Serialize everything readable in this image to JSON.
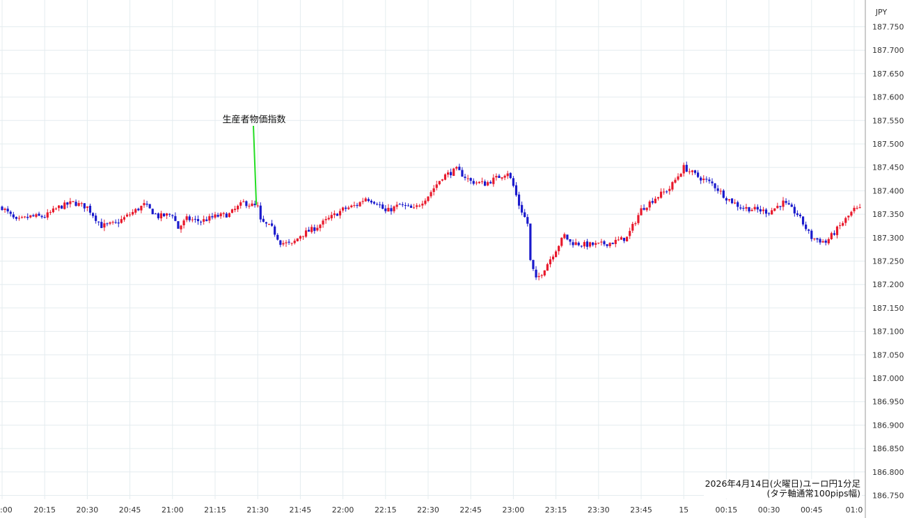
{
  "currency_label": "JPY",
  "caption": {
    "line1": "2026年4月14日(火曜日)ユーロ円1分足",
    "line2": "(タテ軸通常100pips幅)"
  },
  "colors": {
    "up": "#e8192c",
    "down": "#1a1acc",
    "grid": "#e4ecef",
    "annotation_line": "#22dd22"
  },
  "chart_data": {
    "type": "candlestick",
    "instrument": "EUR/JPY",
    "timeframe": "1m",
    "ylim": [
      186.75,
      187.77
    ],
    "y_ticks": [
      "187.750",
      "187.700",
      "187.650",
      "187.600",
      "187.550",
      "187.500",
      "187.450",
      "187.400",
      "187.350",
      "187.300",
      "187.250",
      "187.200",
      "187.150",
      "187.100",
      "187.050",
      "187.000",
      "186.950",
      "186.900",
      "186.850",
      "186.800",
      "186.750"
    ],
    "x_ticks": [
      ":00",
      "20:15",
      "20:30",
      "20:45",
      "21:00",
      "21:15",
      "21:30",
      "21:45",
      "22:00",
      "22:15",
      "22:30",
      "22:45",
      "23:00",
      "23:15",
      "23:30",
      "23:45",
      "15",
      "00:15",
      "00:30",
      "00:45",
      "01:0"
    ],
    "x_range_minutes": [
      "20:00",
      "01:02"
    ],
    "annotation": {
      "text": "生産者物価指数",
      "time": "21:30",
      "price": 187.37
    },
    "anchors": [
      [
        "20:00",
        187.365
      ],
      [
        "20:05",
        187.335
      ],
      [
        "20:10",
        187.345
      ],
      [
        "20:15",
        187.345
      ],
      [
        "20:20",
        187.365
      ],
      [
        "20:25",
        187.375
      ],
      [
        "20:30",
        187.365
      ],
      [
        "20:35",
        187.325
      ],
      [
        "20:40",
        187.33
      ],
      [
        "20:45",
        187.35
      ],
      [
        "20:50",
        187.37
      ],
      [
        "20:55",
        187.345
      ],
      [
        "21:00",
        187.35
      ],
      [
        "21:02",
        187.32
      ],
      [
        "21:05",
        187.34
      ],
      [
        "21:10",
        187.335
      ],
      [
        "21:15",
        187.345
      ],
      [
        "21:20",
        187.35
      ],
      [
        "21:25",
        187.375
      ],
      [
        "21:30",
        187.365
      ],
      [
        "21:31",
        187.335
      ],
      [
        "21:35",
        187.32
      ],
      [
        "21:38",
        187.29
      ],
      [
        "21:42",
        187.285
      ],
      [
        "21:45",
        187.305
      ],
      [
        "21:50",
        187.32
      ],
      [
        "21:55",
        187.34
      ],
      [
        "22:00",
        187.36
      ],
      [
        "22:05",
        187.37
      ],
      [
        "22:08",
        187.385
      ],
      [
        "22:12",
        187.375
      ],
      [
        "22:15",
        187.355
      ],
      [
        "22:20",
        187.37
      ],
      [
        "22:25",
        187.36
      ],
      [
        "22:30",
        187.39
      ],
      [
        "22:35",
        187.43
      ],
      [
        "22:40",
        187.445
      ],
      [
        "22:45",
        187.42
      ],
      [
        "22:50",
        187.415
      ],
      [
        "22:55",
        187.43
      ],
      [
        "22:58",
        187.44
      ],
      [
        "23:00",
        187.41
      ],
      [
        "23:02",
        187.37
      ],
      [
        "23:05",
        187.33
      ],
      [
        "23:06",
        187.25
      ],
      [
        "23:08",
        187.21
      ],
      [
        "23:10",
        187.225
      ],
      [
        "23:15",
        187.275
      ],
      [
        "23:18",
        187.305
      ],
      [
        "23:20",
        187.29
      ],
      [
        "23:25",
        187.285
      ],
      [
        "23:30",
        187.285
      ],
      [
        "23:35",
        187.29
      ],
      [
        "23:40",
        187.3
      ],
      [
        "23:45",
        187.36
      ],
      [
        "23:50",
        187.385
      ],
      [
        "23:55",
        187.405
      ],
      [
        "24:00",
        187.45
      ],
      [
        "24:05",
        187.43
      ],
      [
        "24:10",
        187.415
      ],
      [
        "24:15",
        187.385
      ],
      [
        "24:20",
        187.365
      ],
      [
        "24:25",
        187.36
      ],
      [
        "24:30",
        187.355
      ],
      [
        "24:35",
        187.375
      ],
      [
        "24:40",
        187.35
      ],
      [
        "24:45",
        187.3
      ],
      [
        "24:50",
        187.29
      ],
      [
        "24:55",
        187.325
      ],
      [
        "25:00",
        187.36
      ],
      [
        "25:02",
        187.36
      ]
    ]
  }
}
